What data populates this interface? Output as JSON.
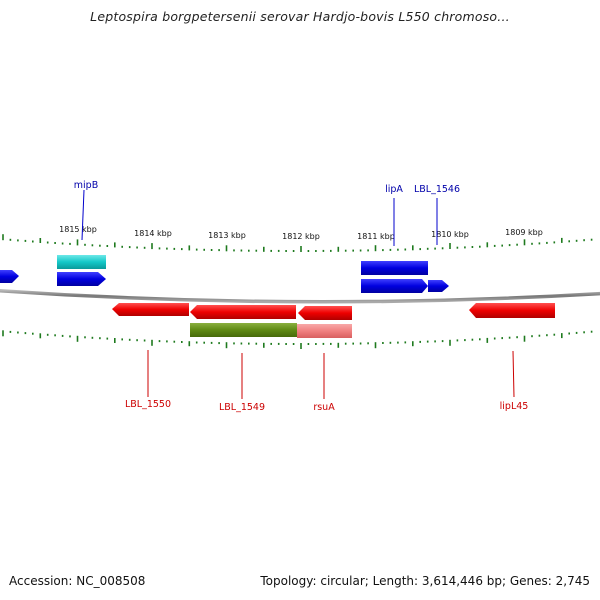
{
  "title": "Leptospira borgpetersenii serovar Hardjo-bovis L550 chromoso...",
  "footer": {
    "accession": "Accession: NC_008508",
    "summary": "Topology: circular; Length: 3,614,446 bp; Genes: 2,745"
  },
  "colors": {
    "forward_gene": "#0000dd",
    "reverse_gene": "#ee0000",
    "cyan_feature": "#14c8c8",
    "olive_feature": "#5f8a14",
    "pink_feature": "#f08080",
    "tick": "#1e7a1e",
    "backbone": "#8a8a8a"
  },
  "ruler": {
    "major_ticks": [
      {
        "label": "1815 kbp"
      },
      {
        "label": "1814 kbp"
      },
      {
        "label": "1813 kbp"
      },
      {
        "label": "1812 kbp"
      },
      {
        "label": "1811 kbp"
      },
      {
        "label": "1810 kbp"
      },
      {
        "label": "1809 kbp"
      }
    ]
  },
  "gene_labels": {
    "top": [
      "mipB",
      "lipA",
      "LBL_1546"
    ],
    "bottom": [
      "LBL_1550",
      "LBL_1549",
      "rsuA",
      "lipL45"
    ]
  }
}
